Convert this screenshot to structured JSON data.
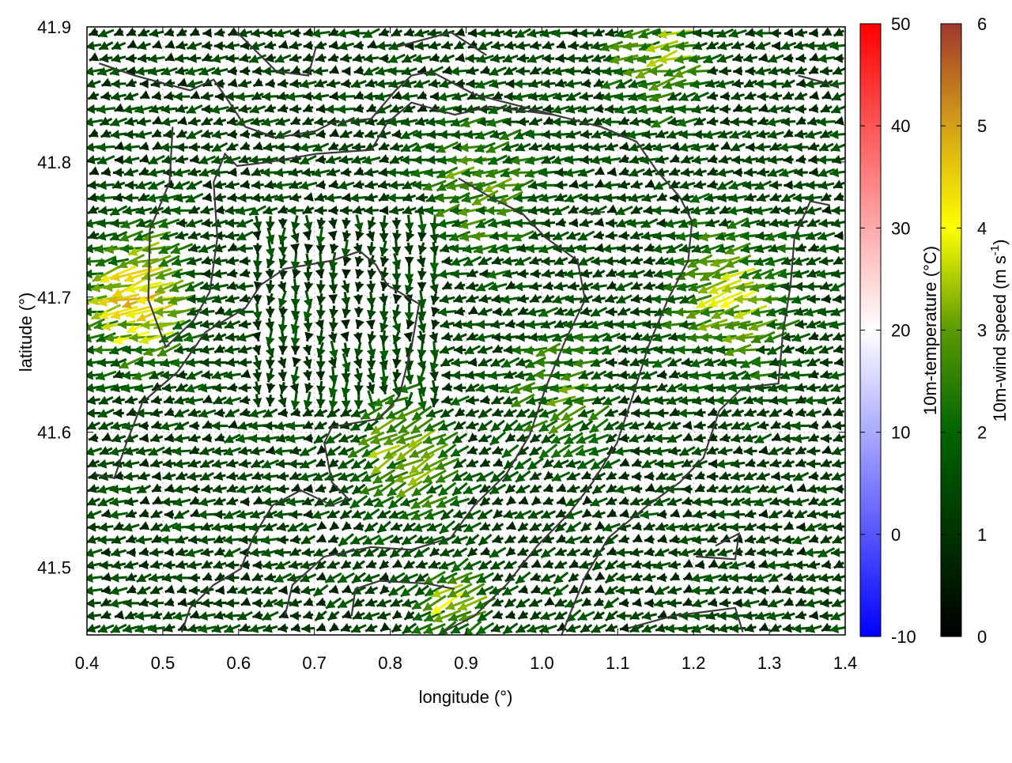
{
  "chart_data": {
    "type": "vector-field",
    "xlabel": "longitude (°)",
    "ylabel": "latitude (°)",
    "xlim": [
      0.4,
      1.4
    ],
    "ylim": [
      41.45,
      41.9
    ],
    "xticks": [
      "0.4",
      "0.5",
      "0.6",
      "0.7",
      "0.8",
      "0.9",
      "1.0",
      "1.1",
      "1.2",
      "1.3",
      "1.4"
    ],
    "yticks": [
      "41.5",
      "41.6",
      "41.7",
      "41.8",
      "41.9"
    ],
    "grid": true,
    "vector_grid": {
      "cols": 60,
      "rows": 48,
      "base_speed": 1.4,
      "base_direction": "west",
      "speed_maxima": [
        {
          "lon": 0.47,
          "lat": 41.7,
          "speed": 3.6,
          "spread": 0.06
        },
        {
          "lon": 0.92,
          "lat": 41.78,
          "speed": 1.8,
          "spread": 0.07
        },
        {
          "lon": 1.25,
          "lat": 41.7,
          "speed": 2.0,
          "spread": 0.08
        },
        {
          "lon": 0.82,
          "lat": 41.58,
          "speed": 2.2,
          "spread": 0.06
        },
        {
          "lon": 1.02,
          "lat": 41.63,
          "speed": 1.6,
          "spread": 0.06
        },
        {
          "lon": 1.15,
          "lat": 41.88,
          "speed": 2.0,
          "spread": 0.06
        },
        {
          "lon": 0.88,
          "lat": 41.47,
          "speed": 2.2,
          "spread": 0.04
        }
      ],
      "southward_zone": {
        "lon": [
          0.62,
          0.86
        ],
        "lat": [
          41.62,
          41.76
        ]
      }
    },
    "contours": [
      [
        [
          0.513,
          41.826
        ],
        [
          0.509,
          41.785
        ],
        [
          0.483,
          41.75
        ],
        [
          0.481,
          41.698
        ],
        [
          0.504,
          41.663
        ],
        [
          0.541,
          41.683
        ],
        [
          0.562,
          41.704
        ],
        [
          0.572,
          41.744
        ],
        [
          0.567,
          41.785
        ],
        [
          0.582,
          41.806
        ],
        [
          0.598,
          41.797
        ],
        [
          0.64,
          41.8
        ],
        [
          0.702,
          41.806
        ],
        [
          0.775,
          41.809
        ],
        [
          0.796,
          41.829
        ],
        [
          0.828,
          41.844
        ],
        [
          0.885,
          41.835
        ],
        [
          0.932,
          41.841
        ],
        [
          1.015,
          41.835
        ],
        [
          1.078,
          41.826
        ],
        [
          1.125,
          41.815
        ],
        [
          1.151,
          41.794
        ],
        [
          1.182,
          41.774
        ],
        [
          1.198,
          41.756
        ],
        [
          1.193,
          41.727
        ],
        [
          1.166,
          41.698
        ],
        [
          1.14,
          41.663
        ],
        [
          1.12,
          41.627
        ],
        [
          1.099,
          41.592
        ],
        [
          1.067,
          41.563
        ],
        [
          1.036,
          41.54
        ],
        [
          0.994,
          41.516
        ],
        [
          0.953,
          41.487
        ],
        [
          0.911,
          41.464
        ],
        [
          0.869,
          41.452
        ]
      ],
      [
        [
          0.41,
          41.569
        ],
        [
          0.436,
          41.566
        ],
        [
          0.452,
          41.592
        ],
        [
          0.473,
          41.622
        ],
        [
          0.52,
          41.645
        ],
        [
          0.556,
          41.674
        ],
        [
          0.609,
          41.692
        ],
        [
          0.629,
          41.709
        ],
        [
          0.661,
          41.721
        ],
        [
          0.723,
          41.727
        ],
        [
          0.76,
          41.734
        ],
        [
          0.781,
          41.724
        ],
        [
          0.796,
          41.709
        ],
        [
          0.838,
          41.695
        ],
        [
          0.828,
          41.663
        ],
        [
          0.812,
          41.627
        ],
        [
          0.786,
          41.61
        ],
        [
          0.723,
          41.604
        ],
        [
          0.713,
          41.592
        ],
        [
          0.723,
          41.563
        ],
        [
          0.744,
          41.551
        ],
        [
          0.723,
          41.546
        ],
        [
          0.682,
          41.557
        ],
        [
          0.645,
          41.546
        ],
        [
          0.619,
          41.522
        ],
        [
          0.603,
          41.499
        ],
        [
          0.567,
          41.487
        ],
        [
          0.536,
          41.47
        ],
        [
          0.525,
          41.452
        ]
      ],
      [
        [
          0.89,
          41.788
        ],
        [
          0.932,
          41.774
        ],
        [
          0.974,
          41.762
        ],
        [
          1.005,
          41.744
        ],
        [
          1.047,
          41.727
        ],
        [
          1.057,
          41.698
        ],
        [
          1.031,
          41.668
        ],
        [
          1.005,
          41.633
        ],
        [
          0.984,
          41.598
        ],
        [
          0.953,
          41.569
        ],
        [
          0.911,
          41.546
        ],
        [
          0.88,
          41.522
        ],
        [
          0.828,
          41.513
        ],
        [
          0.775,
          41.515
        ],
        [
          0.713,
          41.508
        ],
        [
          0.671,
          41.487
        ],
        [
          0.661,
          41.464
        ]
      ],
      [
        [
          0.416,
          41.873
        ],
        [
          0.463,
          41.864
        ],
        [
          0.536,
          41.853
        ],
        [
          0.567,
          41.861
        ],
        [
          0.588,
          41.844
        ],
        [
          0.609,
          41.826
        ],
        [
          0.65,
          41.818
        ],
        [
          0.702,
          41.823
        ],
        [
          0.723,
          41.829
        ],
        [
          0.775,
          41.832
        ],
        [
          0.807,
          41.853
        ],
        [
          0.828,
          41.864
        ],
        [
          0.854,
          41.867
        ],
        [
          0.911,
          41.85
        ],
        [
          0.953,
          41.844
        ],
        [
          1.015,
          41.835
        ]
      ],
      [
        [
          1.38,
          41.768
        ],
        [
          1.354,
          41.771
        ],
        [
          1.333,
          41.744
        ],
        [
          1.328,
          41.709
        ],
        [
          1.318,
          41.674
        ],
        [
          1.312,
          41.636
        ],
        [
          1.265,
          41.633
        ],
        [
          1.234,
          41.616
        ],
        [
          1.213,
          41.581
        ],
        [
          1.182,
          41.563
        ],
        [
          1.14,
          41.546
        ],
        [
          1.088,
          41.522
        ],
        [
          1.057,
          41.493
        ],
        [
          1.036,
          41.464
        ],
        [
          1.026,
          41.45
        ]
      ],
      [
        [
          1.114,
          41.455
        ],
        [
          1.172,
          41.464
        ],
        [
          1.255,
          41.47
        ],
        [
          1.265,
          41.452
        ]
      ],
      [
        [
          1.203,
          41.508
        ],
        [
          1.255,
          41.506
        ],
        [
          1.26,
          41.525
        ],
        [
          1.229,
          41.516
        ]
      ],
      [
        [
          0.598,
          41.896
        ],
        [
          0.65,
          41.867
        ],
        [
          0.692,
          41.864
        ],
        [
          0.702,
          41.885
        ]
      ],
      [
        [
          0.807,
          41.885
        ],
        [
          0.88,
          41.896
        ],
        [
          0.927,
          41.879
        ]
      ],
      [
        [
          1.338,
          41.864
        ],
        [
          1.391,
          41.856
        ]
      ],
      [
        [
          0.749,
          41.464
        ],
        [
          0.754,
          41.484
        ],
        [
          0.786,
          41.49
        ],
        [
          0.848,
          41.488
        ],
        [
          0.885,
          41.484
        ]
      ],
      [
        [
          1.057,
          41.762
        ],
        [
          1.083,
          41.763
        ]
      ]
    ],
    "colorbars": [
      {
        "label": "10m-temperature (°C)",
        "range": [
          -10,
          50
        ],
        "ticks": [
          "-10",
          "0",
          "10",
          "20",
          "30",
          "40",
          "50"
        ],
        "colors": [
          "#0000ff",
          "#ffffff",
          "#ff0000"
        ]
      },
      {
        "label_main": "10m-wind speed (m s",
        "label_sup": "-1",
        "label_end": ")",
        "range": [
          0,
          6
        ],
        "ticks": [
          "0",
          "1",
          "2",
          "3",
          "4",
          "5",
          "6"
        ],
        "colors": [
          "#000000",
          "#003300",
          "#006400",
          "#5a9a00",
          "#ffff00",
          "#d4a017",
          "#a0382e"
        ]
      }
    ]
  }
}
